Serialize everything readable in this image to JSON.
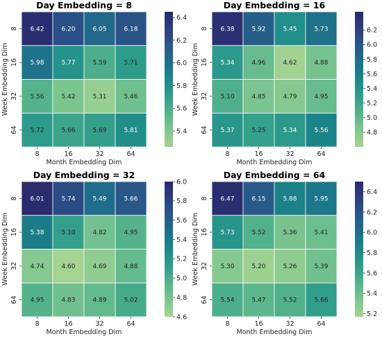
{
  "chart_data": [
    {
      "type": "heatmap",
      "title": "Day Embedding = 8",
      "xlabel": "Month Embedding Dim",
      "ylabel": "Week Embedding Dim",
      "x_categories": [
        "8",
        "16",
        "32",
        "64"
      ],
      "y_categories": [
        "8",
        "16",
        "32",
        "64"
      ],
      "values": [
        [
          6.42,
          6.2,
          6.05,
          6.18
        ],
        [
          5.98,
          5.77,
          5.59,
          5.71
        ],
        [
          5.56,
          5.42,
          5.31,
          5.46
        ],
        [
          5.72,
          5.66,
          5.69,
          5.81
        ]
      ],
      "annotations": [
        [
          "6.42",
          "6.20",
          "6.05",
          "6.18"
        ],
        [
          "5.98",
          "5.77",
          "5.59",
          "5.71"
        ],
        [
          "5.56",
          "5.42",
          "5.31",
          "5.46"
        ],
        [
          "5.72",
          "5.66",
          "5.69",
          "5.81"
        ]
      ],
      "colorbar": {
        "min": 5.26,
        "max": 6.45,
        "ticks": [
          5.4,
          5.6,
          5.8,
          6.0,
          6.2,
          6.4
        ],
        "tick_labels": [
          "5.4",
          "5.6",
          "5.8",
          "6.0",
          "6.2",
          "6.4"
        ]
      },
      "colormap": "crest"
    },
    {
      "type": "heatmap",
      "title": "Day Embedding = 16",
      "xlabel": "Month Embedding Dim",
      "ylabel": "Week Embedding Dim",
      "x_categories": [
        "8",
        "16",
        "32",
        "64"
      ],
      "y_categories": [
        "8",
        "16",
        "32",
        "64"
      ],
      "values": [
        [
          6.38,
          5.92,
          5.45,
          5.73
        ],
        [
          5.34,
          4.96,
          4.62,
          4.88
        ],
        [
          5.1,
          4.85,
          4.79,
          4.95
        ],
        [
          5.37,
          5.25,
          5.34,
          5.56
        ]
      ],
      "annotations": [
        [
          "6.38",
          "5.92",
          "5.45",
          "5.73"
        ],
        [
          "5.34",
          "4.96",
          "4.62",
          "4.88"
        ],
        [
          "5.10",
          "4.85",
          "4.79",
          "4.95"
        ],
        [
          "5.37",
          "5.25",
          "5.34",
          "5.56"
        ]
      ],
      "colorbar": {
        "min": 4.6,
        "max": 6.45,
        "ticks": [
          4.8,
          5.0,
          5.2,
          5.4,
          5.6,
          5.8,
          6.0,
          6.2
        ],
        "tick_labels": [
          "4.8",
          "5.0",
          "5.2",
          "5.4",
          "5.6",
          "5.8",
          "6.0",
          "6.2"
        ]
      },
      "colormap": "crest"
    },
    {
      "type": "heatmap",
      "title": "Day Embedding = 32",
      "xlabel": "Month Embedding Dim",
      "ylabel": "Week Embedding Dim",
      "x_categories": [
        "8",
        "16",
        "32",
        "64"
      ],
      "y_categories": [
        "8",
        "16",
        "32",
        "64"
      ],
      "values": [
        [
          6.01,
          5.74,
          5.49,
          5.66
        ],
        [
          5.38,
          5.1,
          4.82,
          4.95
        ],
        [
          4.74,
          4.6,
          4.69,
          4.88
        ],
        [
          4.95,
          4.83,
          4.89,
          5.02
        ]
      ],
      "annotations": [
        [
          "6.01",
          "5.74",
          "5.49",
          "5.66"
        ],
        [
          "5.38",
          "5.10",
          "4.82",
          "4.95"
        ],
        [
          "4.74",
          "4.60",
          "4.69",
          "4.88"
        ],
        [
          "4.95",
          "4.83",
          "4.89",
          "5.02"
        ]
      ],
      "colorbar": {
        "min": 4.6,
        "max": 6.0,
        "ticks": [
          4.6,
          4.8,
          5.0,
          5.2,
          5.4,
          5.6,
          5.8,
          6.0
        ],
        "tick_labels": [
          "4.6",
          "4.8",
          "5.0",
          "5.2",
          "5.4",
          "5.6",
          "5.8",
          "6.0"
        ]
      },
      "colormap": "crest"
    },
    {
      "type": "heatmap",
      "title": "Day Embedding = 64",
      "xlabel": "Month Embedding Dim",
      "ylabel": "Week Embedding Dim",
      "x_categories": [
        "8",
        "16",
        "32",
        "64"
      ],
      "y_categories": [
        "8",
        "16",
        "32",
        "64"
      ],
      "values": [
        [
          6.47,
          6.15,
          5.88,
          5.95
        ],
        [
          5.73,
          5.52,
          5.36,
          5.41
        ],
        [
          5.3,
          5.2,
          5.26,
          5.39
        ],
        [
          5.54,
          5.47,
          5.52,
          5.66
        ]
      ],
      "annotations": [
        [
          "6.47",
          "6.15",
          "5.88",
          "5.95"
        ],
        [
          "5.73",
          "5.52",
          "5.36",
          "5.41"
        ],
        [
          "5.30",
          "5.20",
          "5.26",
          "5.39"
        ],
        [
          "5.54",
          "5.47",
          "5.52",
          "5.66"
        ]
      ],
      "colorbar": {
        "min": 5.17,
        "max": 6.5,
        "ticks": [
          5.2,
          5.4,
          5.6,
          5.8,
          6.0,
          6.2,
          6.4
        ],
        "tick_labels": [
          "5.2",
          "5.4",
          "5.6",
          "5.8",
          "6.0",
          "6.2",
          "6.4"
        ]
      },
      "colormap": "crest"
    }
  ],
  "colors": {
    "crest_stops": [
      "#a5cd90",
      "#74ba89",
      "#4ba38b",
      "#2c8d8b",
      "#1a7589",
      "#1f5c85",
      "#253f80",
      "#2c1e3d"
    ]
  }
}
